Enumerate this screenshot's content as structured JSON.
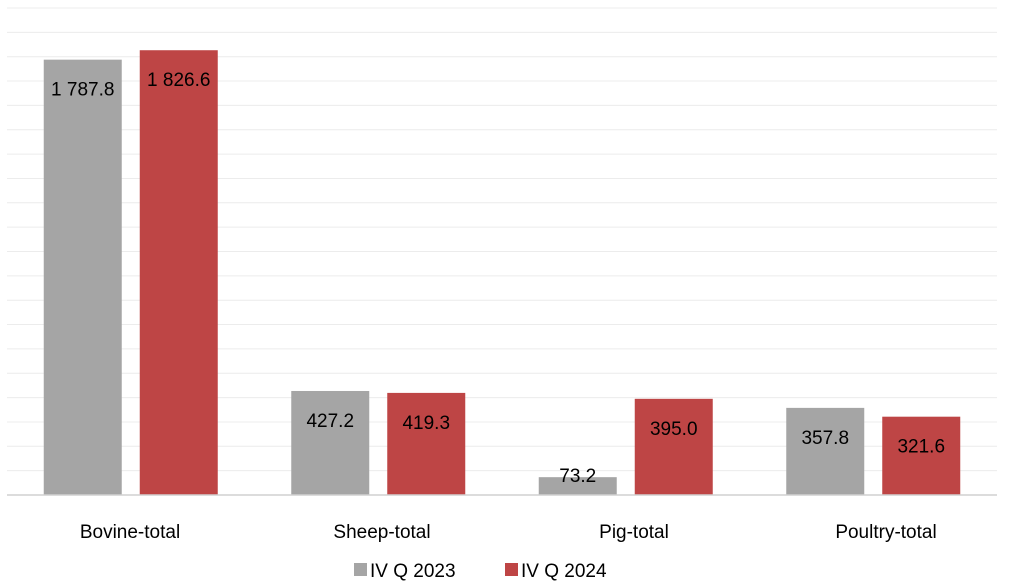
{
  "chart_data": {
    "type": "bar",
    "categories": [
      "Bovine-total",
      "Sheep-total",
      "Pig-total",
      "Poultry-total"
    ],
    "series": [
      {
        "name": "IV Q 2023",
        "color": "#a5a5a5",
        "values": [
          1787.8,
          427.2,
          73.2,
          357.8
        ],
        "labels": [
          "1 787.8",
          "427.2",
          "73.2",
          "357.8"
        ]
      },
      {
        "name": "IV Q 2024",
        "color": "#be4545",
        "values": [
          1826.6,
          419.3,
          395.0,
          321.6
        ],
        "labels": [
          "1 826.6",
          "419.3",
          "395.0",
          "321.6"
        ]
      }
    ],
    "ylim": [
      0,
      2000
    ],
    "grid": true,
    "legend": "bottom"
  }
}
